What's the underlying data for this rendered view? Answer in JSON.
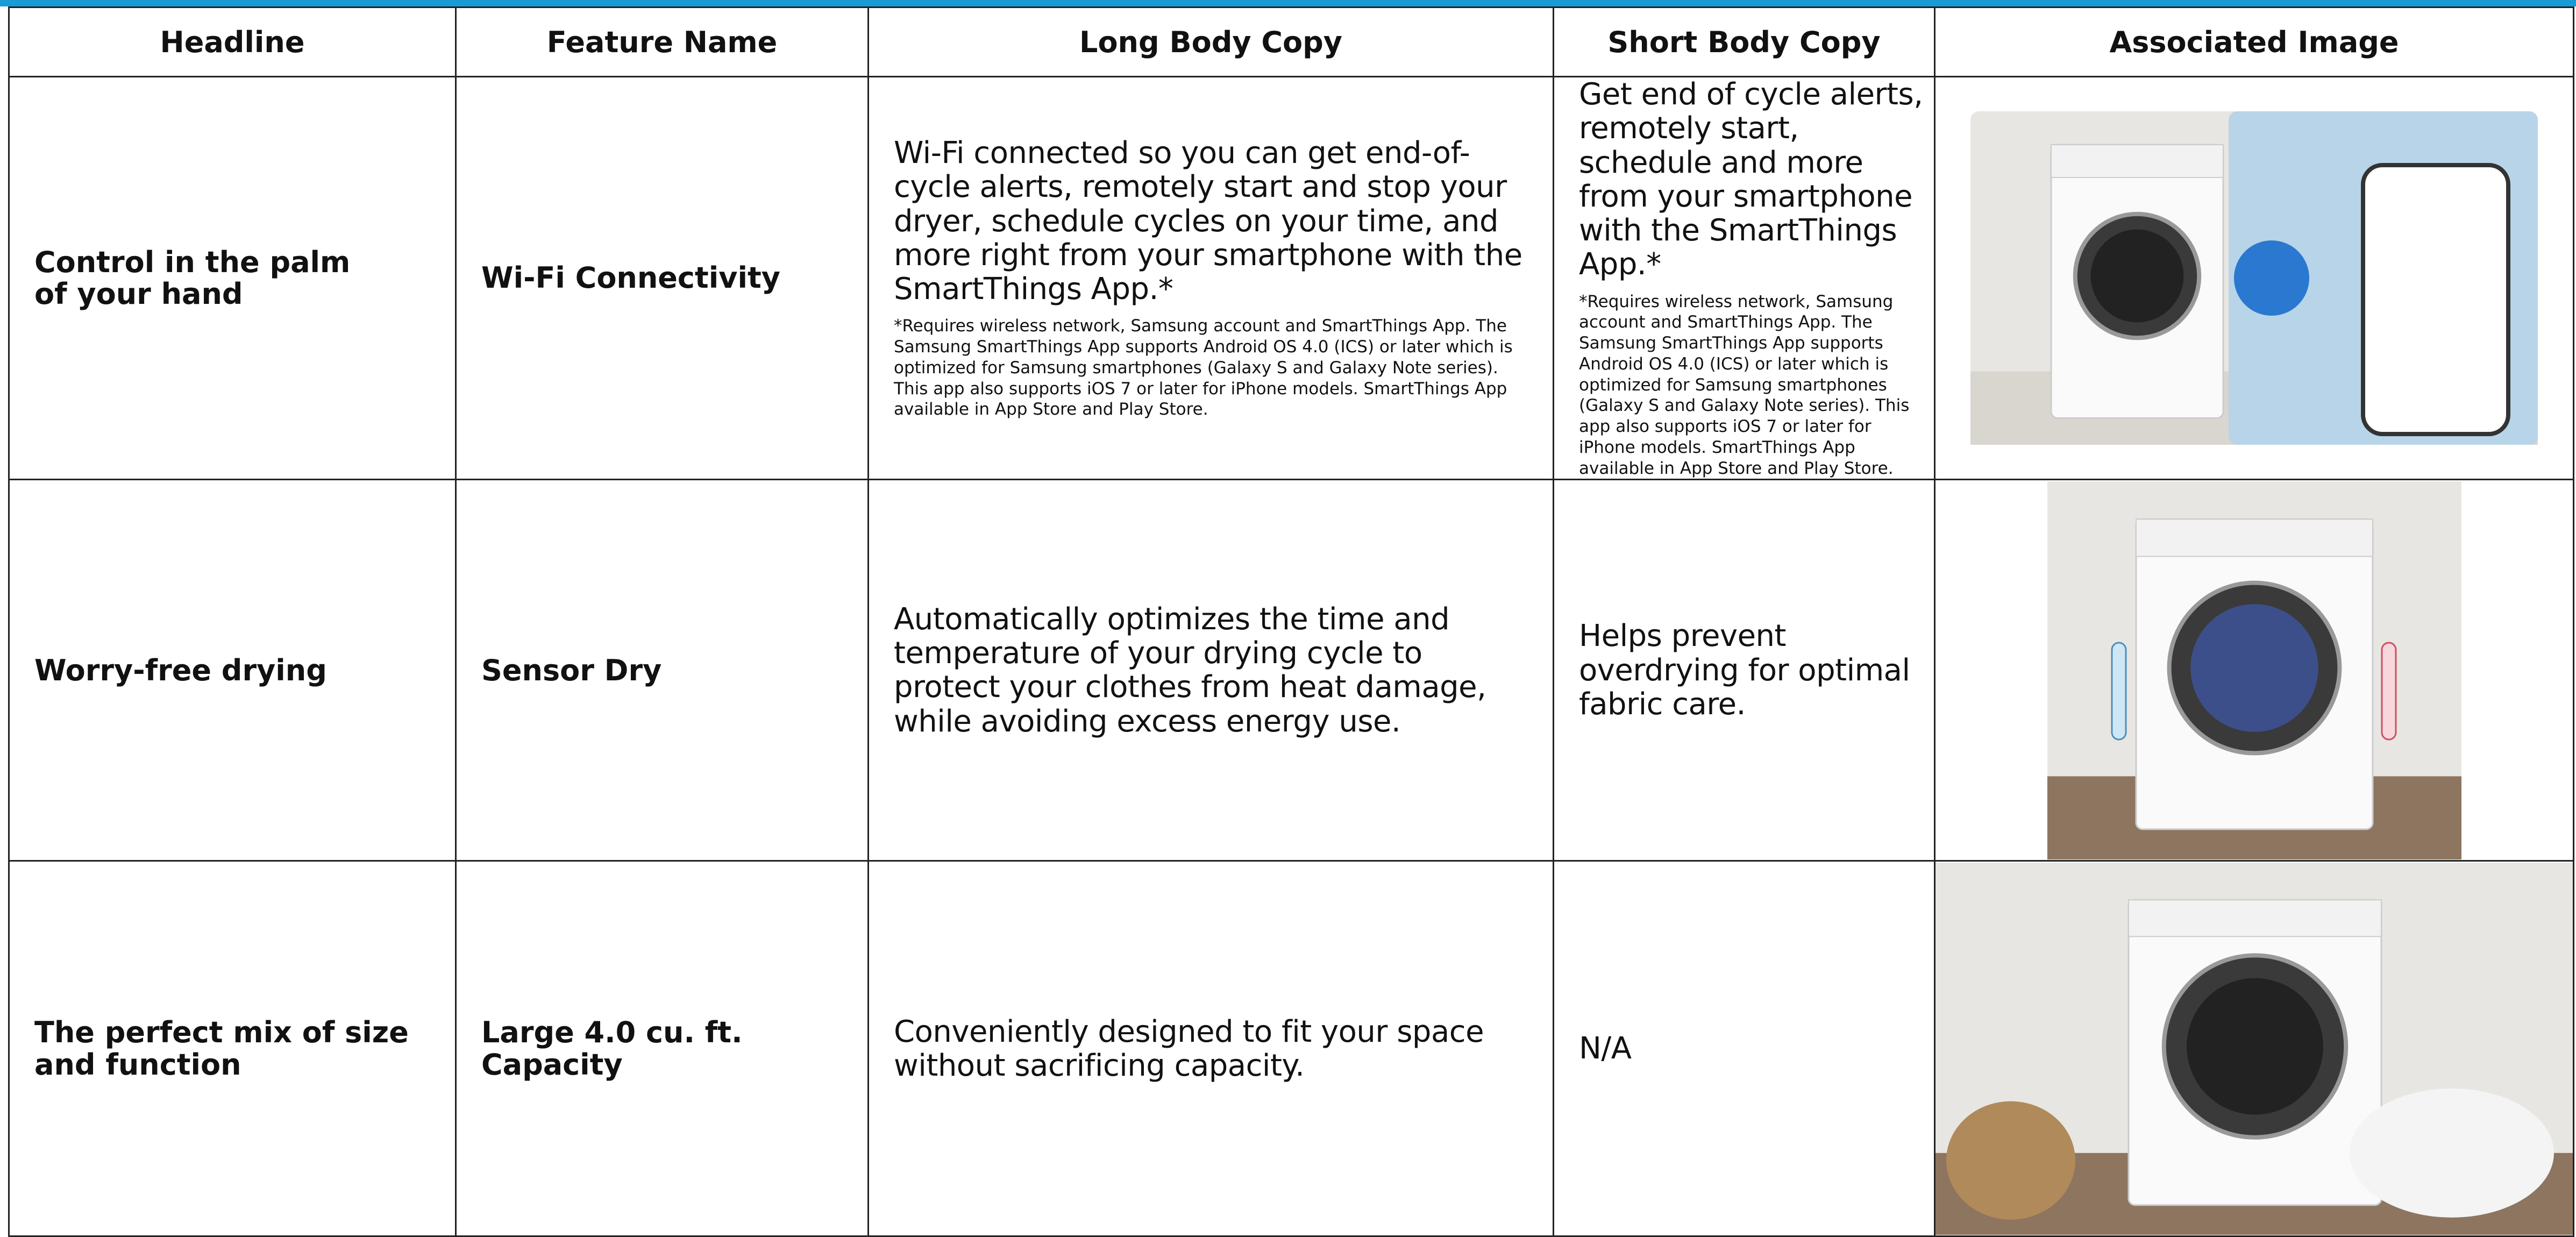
{
  "table": {
    "headers": [
      "Headline",
      "Feature Name",
      "Long Body Copy",
      "Short Body Copy",
      "Associated Image"
    ],
    "rows": [
      {
        "headline": [
          "Control in the palm",
          "of your hand"
        ],
        "feature": "Wi-Fi Connectivity",
        "long_body": "Wi-Fi connected so you can get end-of-cycle alerts, remotely start and stop your dryer, schedule cycles on your time, and more right from your smartphone with the SmartThings App.*",
        "long_footnote": "*Requires wireless network, Samsung account and SmartThings App. The Samsung SmartThings App supports Android OS 4.0 (ICS) or later which is optimized for Samsung smartphones (Galaxy S and Galaxy Note series). This app also supports iOS 7 or later for iPhone models. SmartThings App available in App Store and Play Store.",
        "short_body": "Get end of cycle alerts, remotely start, schedule and more from your smartphone with the SmartThings App.*",
        "short_footnote": "*Requires wireless network, Samsung account and SmartThings App. The Samsung SmartThings App supports Android OS 4.0 (ICS) or later which is optimized for Samsung smartphones (Galaxy S and Galaxy Note series). This app also supports iOS 7 or later for iPhone models. SmartThings App available in App Store and Play Store."
      },
      {
        "headline": [
          "Worry-free drying"
        ],
        "feature": "Sensor Dry",
        "long_body": "Automatically optimizes the time and temperature of your drying cycle to protect your clothes from heat damage, while avoiding excess energy use.",
        "short_body": "Helps prevent overdrying for optimal fabric care."
      },
      {
        "headline": [
          "The perfect mix of size",
          "and function"
        ],
        "feature": "Large 4.0 cu. ft. Capacity",
        "long_body": "Conveniently designed to fit your space without sacrificing capacity.",
        "short_body": "N/A"
      }
    ]
  }
}
